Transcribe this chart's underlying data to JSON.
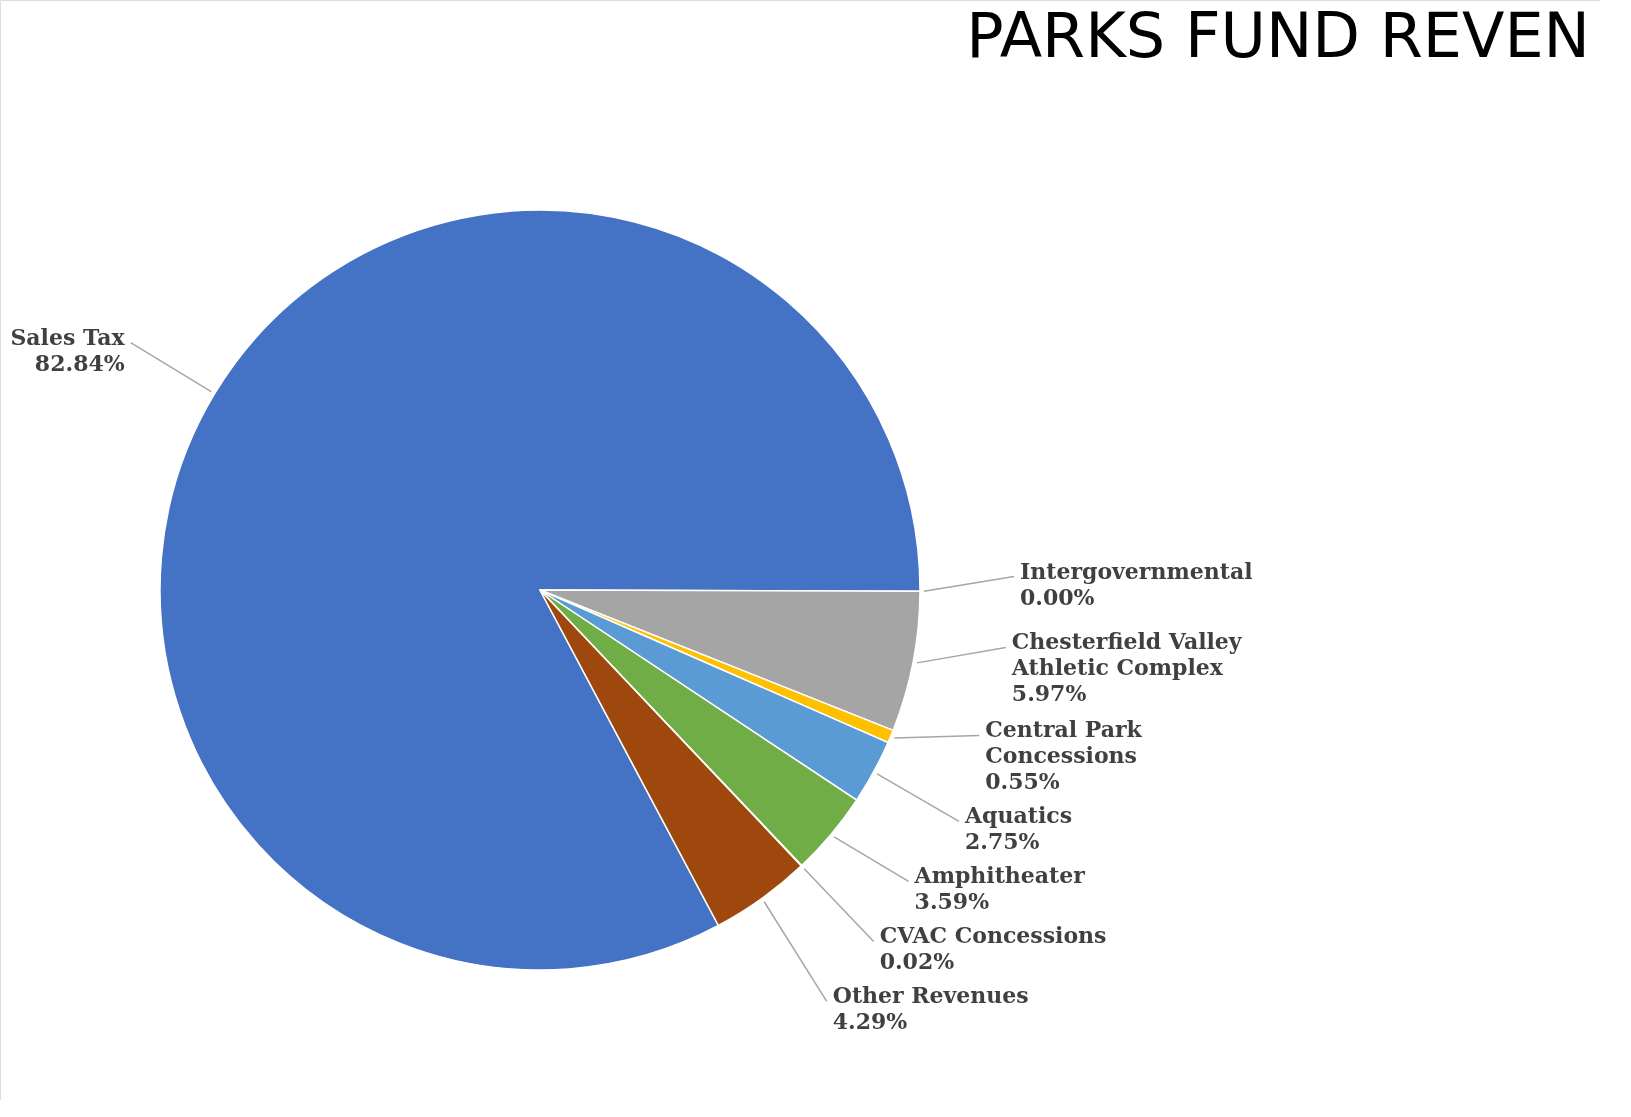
{
  "chart_data": {
    "type": "pie",
    "title": "PARKS FUND REVEN",
    "categories": [
      "Sales Tax",
      "Intergovernmental",
      "Chesterfield Valley Athletic Complex",
      "Central Park Concessions",
      "Aquatics",
      "Amphitheater",
      "CVAC Concessions",
      "Other Revenues"
    ],
    "values": [
      82.84,
      0.0,
      5.97,
      0.55,
      2.75,
      3.59,
      0.02,
      4.29
    ],
    "colors": [
      "#4472c4",
      "#203864",
      "#a5a5a5",
      "#ffc000",
      "#5b9bd5",
      "#70ad47",
      "#264478",
      "#9e480e"
    ],
    "value_labels": [
      "82.84%",
      "0.00%",
      "5.97%",
      "0.55%",
      "2.75%",
      "3.59%",
      "0.02%",
      "4.29%"
    ]
  }
}
